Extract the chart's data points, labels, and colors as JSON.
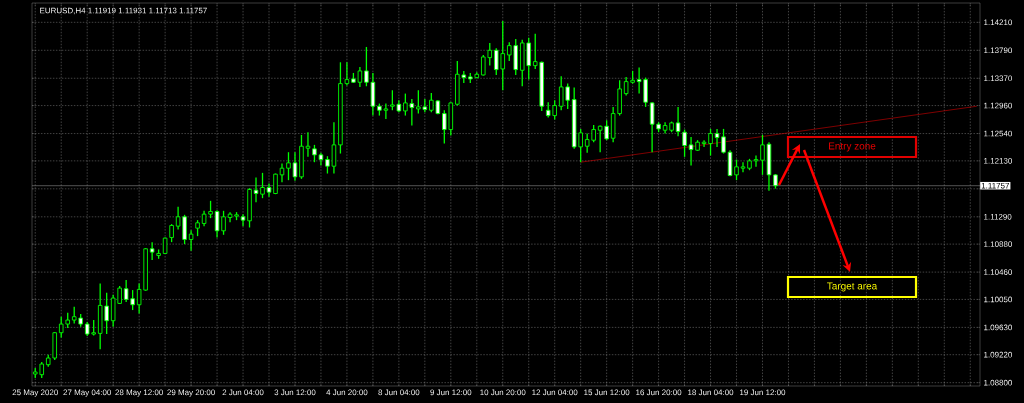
{
  "chart_data": {
    "type": "candlestick",
    "title": "EURUSD,H4 1.11919 1.11931 1.11713 1.11757",
    "color": "#00ff00",
    "categories": [
      "25 May 2020",
      null,
      null,
      null,
      null,
      null,
      null,
      null,
      "27 May 04:00",
      null,
      null,
      null,
      null,
      null,
      null,
      null,
      "28 May 12:00",
      null,
      null,
      null,
      null,
      null,
      null,
      null,
      "29 May 20:00",
      null,
      null,
      null,
      null,
      null,
      null,
      null,
      "2 Jun 04:00",
      null,
      null,
      null,
      null,
      null,
      null,
      null,
      "3 Jun 12:00",
      null,
      null,
      null,
      null,
      null,
      null,
      null,
      "4 Jun 20:00",
      null,
      null,
      null,
      null,
      null,
      null,
      null,
      "8 Jun 04:00",
      null,
      null,
      null,
      null,
      null,
      null,
      null,
      "9 Jun 12:00",
      null,
      null,
      null,
      null,
      null,
      null,
      null,
      "10 Jun 20:00",
      null,
      null,
      null,
      null,
      null,
      null,
      null,
      "12 Jun 04:00",
      null,
      null,
      null,
      null,
      null,
      null,
      null,
      "15 Jun 12:00",
      null,
      null,
      null,
      null,
      null,
      null,
      null,
      "16 Jun 20:00",
      null,
      null,
      null,
      null,
      null,
      null,
      null,
      "18 Jun 04:00",
      null,
      null,
      null,
      null,
      null,
      null,
      null,
      "19 Jun 12:00",
      null,
      null,
      null,
      null,
      null,
      null,
      null,
      null,
      null,
      null,
      null,
      null,
      null,
      null,
      null,
      null,
      null,
      null,
      null,
      null,
      null,
      null,
      null,
      null,
      null,
      null,
      null,
      null,
      null,
      null,
      null,
      null,
      null
    ],
    "ohlc": [
      [
        1.0893,
        1.0902,
        1.0887,
        1.0896
      ],
      [
        1.0892,
        1.0911,
        1.0887,
        1.0908
      ],
      [
        1.0907,
        1.0922,
        1.0904,
        1.0917
      ],
      [
        1.0917,
        1.0956,
        1.0914,
        1.0955
      ],
      [
        1.0955,
        1.0979,
        1.0948,
        1.0968
      ],
      [
        1.0968,
        1.0985,
        1.0962,
        1.0974
      ],
      [
        1.0974,
        1.0994,
        1.0969,
        1.0979
      ],
      [
        1.0977,
        1.0983,
        1.0964,
        1.0968
      ],
      [
        1.0968,
        1.0971,
        1.095,
        1.0953
      ],
      [
        1.0953,
        1.0974,
        1.0951,
        1.0955
      ],
      [
        1.0954,
        1.1029,
        1.093,
        1.0996
      ],
      [
        1.0995,
        1.1015,
        1.0953,
        1.0973
      ],
      [
        1.0973,
        1.1012,
        1.0964,
        1.1007
      ],
      [
        1.0999,
        1.1025,
        1.0998,
        1.1022
      ],
      [
        1.1021,
        1.1034,
        1.1001,
        1.1005
      ],
      [
        1.1006,
        1.1019,
        1.0989,
        1.0997
      ],
      [
        1.0997,
        1.1029,
        1.0984,
        1.102
      ],
      [
        1.1019,
        1.1082,
        1.1018,
        1.1081
      ],
      [
        1.1081,
        1.1091,
        1.1064,
        1.1076
      ],
      [
        1.1071,
        1.108,
        1.1066,
        1.1074
      ],
      [
        1.1074,
        1.1098,
        1.1073,
        1.1097
      ],
      [
        1.1098,
        1.1118,
        1.1091,
        1.1116
      ],
      [
        1.1115,
        1.1144,
        1.111,
        1.1129
      ],
      [
        1.1129,
        1.1132,
        1.1088,
        1.1095
      ],
      [
        1.1095,
        1.1109,
        1.1078,
        1.1103
      ],
      [
        1.1112,
        1.1124,
        1.11,
        1.112
      ],
      [
        1.1119,
        1.1138,
        1.1115,
        1.1133
      ],
      [
        1.1133,
        1.1153,
        1.1127,
        1.1137
      ],
      [
        1.1137,
        1.1139,
        1.1098,
        1.1108
      ],
      [
        1.1108,
        1.1138,
        1.1102,
        1.1129
      ],
      [
        1.1128,
        1.1136,
        1.1121,
        1.1133
      ],
      [
        1.113,
        1.1136,
        1.1124,
        1.1132
      ],
      [
        1.1129,
        1.1133,
        1.1115,
        1.1124
      ],
      [
        1.1123,
        1.1172,
        1.1113,
        1.117
      ],
      [
        1.1169,
        1.1188,
        1.1151,
        1.1164
      ],
      [
        1.1163,
        1.1195,
        1.1157,
        1.1173
      ],
      [
        1.1173,
        1.1179,
        1.1159,
        1.1166
      ],
      [
        1.1164,
        1.1194,
        1.1163,
        1.1193
      ],
      [
        1.1192,
        1.1209,
        1.1181,
        1.1202
      ],
      [
        1.1202,
        1.1226,
        1.1184,
        1.121
      ],
      [
        1.121,
        1.1226,
        1.1183,
        1.1189
      ],
      [
        1.1189,
        1.1252,
        1.1186,
        1.1235
      ],
      [
        1.1232,
        1.1256,
        1.1219,
        1.1235
      ],
      [
        1.1231,
        1.1237,
        1.1211,
        1.1222
      ],
      [
        1.1222,
        1.1225,
        1.1206,
        1.1215
      ],
      [
        1.1215,
        1.122,
        1.1194,
        1.1205
      ],
      [
        1.1205,
        1.1271,
        1.1194,
        1.1237
      ],
      [
        1.1237,
        1.1361,
        1.1224,
        1.1329
      ],
      [
        1.1329,
        1.1361,
        1.1326,
        1.1335
      ],
      [
        1.1336,
        1.1345,
        1.133,
        1.1331
      ],
      [
        1.1331,
        1.1354,
        1.1324,
        1.1348
      ],
      [
        1.1348,
        1.1384,
        1.1325,
        1.1331
      ],
      [
        1.1331,
        1.1345,
        1.1281,
        1.1295
      ],
      [
        1.1295,
        1.1299,
        1.1281,
        1.1289
      ],
      [
        1.1289,
        1.1299,
        1.1276,
        1.1291
      ],
      [
        1.1295,
        1.1319,
        1.1289,
        1.1297
      ],
      [
        1.1298,
        1.1304,
        1.1286,
        1.1288
      ],
      [
        1.1288,
        1.1314,
        1.1281,
        1.13
      ],
      [
        1.1299,
        1.1306,
        1.1266,
        1.1293
      ],
      [
        1.1291,
        1.1319,
        1.1284,
        1.1294
      ],
      [
        1.1294,
        1.1306,
        1.1286,
        1.129
      ],
      [
        1.1289,
        1.1315,
        1.1286,
        1.1304
      ],
      [
        1.1303,
        1.1304,
        1.1283,
        1.1284
      ],
      [
        1.1284,
        1.1289,
        1.1239,
        1.126
      ],
      [
        1.126,
        1.1301,
        1.1251,
        1.13
      ],
      [
        1.1298,
        1.1363,
        1.1296,
        1.1343
      ],
      [
        1.1342,
        1.1348,
        1.133,
        1.1338
      ],
      [
        1.1339,
        1.1345,
        1.133,
        1.1336
      ],
      [
        1.1338,
        1.1346,
        1.1337,
        1.1343
      ],
      [
        1.1342,
        1.1372,
        1.1341,
        1.1369
      ],
      [
        1.1368,
        1.139,
        1.1356,
        1.1379
      ],
      [
        1.1379,
        1.1382,
        1.1342,
        1.135
      ],
      [
        1.1351,
        1.1423,
        1.1319,
        1.1374
      ],
      [
        1.1372,
        1.1391,
        1.1363,
        1.1386
      ],
      [
        1.1386,
        1.1396,
        1.1342,
        1.135
      ],
      [
        1.1349,
        1.1395,
        1.1325,
        1.139
      ],
      [
        1.139,
        1.1398,
        1.1335,
        1.1356
      ],
      [
        1.1356,
        1.1404,
        1.1351,
        1.1362
      ],
      [
        1.1361,
        1.1362,
        1.1288,
        1.1295
      ],
      [
        1.1289,
        1.1301,
        1.1278,
        1.1281
      ],
      [
        1.1281,
        1.1304,
        1.1275,
        1.1296
      ],
      [
        1.1295,
        1.134,
        1.1289,
        1.1324
      ],
      [
        1.1324,
        1.1329,
        1.1291,
        1.1304
      ],
      [
        1.1305,
        1.1323,
        1.1231,
        1.1234
      ],
      [
        1.1234,
        1.1261,
        1.1211,
        1.1255
      ],
      [
        1.1235,
        1.1254,
        1.1225,
        1.1245
      ],
      [
        1.1244,
        1.1267,
        1.1241,
        1.126
      ],
      [
        1.1259,
        1.1266,
        1.1226,
        1.1265
      ],
      [
        1.1265,
        1.1274,
        1.1244,
        1.1246
      ],
      [
        1.1247,
        1.1294,
        1.1241,
        1.1284
      ],
      [
        1.1284,
        1.1334,
        1.1281,
        1.1321
      ],
      [
        1.1314,
        1.1339,
        1.1311,
        1.1332
      ],
      [
        1.1331,
        1.1348,
        1.1329,
        1.1334
      ],
      [
        1.1335,
        1.1353,
        1.1314,
        1.1332
      ],
      [
        1.1335,
        1.1338,
        1.1294,
        1.1301
      ],
      [
        1.13,
        1.1301,
        1.1226,
        1.1268
      ],
      [
        1.1268,
        1.1271,
        1.1256,
        1.1261
      ],
      [
        1.1259,
        1.1271,
        1.1254,
        1.1266
      ],
      [
        1.1259,
        1.1272,
        1.1256,
        1.127
      ],
      [
        1.127,
        1.1294,
        1.125,
        1.1257
      ],
      [
        1.1256,
        1.126,
        1.1219,
        1.1236
      ],
      [
        1.1237,
        1.1249,
        1.1206,
        1.123
      ],
      [
        1.1229,
        1.1244,
        1.1228,
        1.1241
      ],
      [
        1.1239,
        1.1244,
        1.1234,
        1.1241
      ],
      [
        1.1239,
        1.1261,
        1.1221,
        1.1254
      ],
      [
        1.1254,
        1.1261,
        1.1234,
        1.1248
      ],
      [
        1.1249,
        1.1261,
        1.1224,
        1.1226
      ],
      [
        1.1226,
        1.1229,
        1.119,
        1.1191
      ],
      [
        1.1192,
        1.1215,
        1.1184,
        1.1204
      ],
      [
        1.1202,
        1.1211,
        1.1196,
        1.1204
      ],
      [
        1.1202,
        1.1216,
        1.1199,
        1.1213
      ],
      [
        1.1213,
        1.1221,
        1.1204,
        1.1215
      ],
      [
        1.1214,
        1.1252,
        1.1192,
        1.1237
      ],
      [
        1.1238,
        1.1241,
        1.1168,
        1.1192
      ],
      [
        1.11919,
        1.11931,
        1.11713,
        1.11757
      ],
      null,
      null,
      null,
      null,
      null,
      null,
      null,
      null,
      null,
      null,
      null,
      null,
      null,
      null,
      null,
      null,
      null,
      null,
      null,
      null,
      null,
      null,
      null,
      null,
      null,
      null,
      null,
      null,
      null,
      null,
      null
    ],
    "series": [
      {
        "type": "line",
        "color": "#d40000",
        "values": [
          null,
          null,
          null,
          null,
          null,
          null,
          null,
          null,
          null,
          null,
          null,
          null,
          null,
          null,
          null,
          null,
          null,
          null,
          null,
          null,
          null,
          null,
          null,
          null,
          null,
          null,
          null,
          null,
          null,
          null,
          null,
          null,
          null,
          null,
          null,
          null,
          null,
          null,
          null,
          null,
          null,
          null,
          null,
          null,
          null,
          null,
          null,
          null,
          null,
          null,
          null,
          null,
          null,
          null,
          null,
          null,
          null,
          null,
          null,
          null,
          null,
          null,
          null,
          null,
          null,
          null,
          null,
          null,
          null,
          null,
          null,
          null,
          null,
          null,
          null,
          null,
          null,
          null,
          null,
          null,
          null,
          null,
          null,
          null,
          1.1211,
          null,
          null,
          null,
          null,
          null,
          null,
          null,
          null,
          null,
          null,
          null,
          null,
          null,
          null,
          null,
          null,
          null,
          null,
          null,
          null,
          null,
          null,
          null,
          null,
          null,
          null,
          null,
          null,
          null,
          null,
          null,
          null,
          null,
          null,
          null,
          null,
          null,
          null,
          null,
          null,
          null,
          null,
          null,
          null,
          null,
          null,
          null,
          null,
          null,
          null,
          null,
          null,
          null,
          null,
          null,
          null,
          null,
          null,
          null,
          null,
          1.1295
        ]
      }
    ],
    "ylim": [
      1.0875,
      1.145
    ],
    "yticks": [
      {
        "value": 1.1421,
        "label": "1.14210"
      },
      {
        "value": 1.1379,
        "label": "1.13790"
      },
      {
        "value": 1.1337,
        "label": "1.13370"
      },
      {
        "value": 1.1296,
        "label": "1.12960"
      },
      {
        "value": 1.1254,
        "label": "1.12540"
      },
      {
        "value": 1.1213,
        "label": "1.12130"
      },
      {
        "value": 1.1171,
        "label": null
      },
      {
        "value": 1.1129,
        "label": "1.11290"
      },
      {
        "value": 1.1088,
        "label": "1.10880"
      },
      {
        "value": 1.1046,
        "label": "1.10460"
      },
      {
        "value": 1.1005,
        "label": "1.10050"
      },
      {
        "value": 1.0963,
        "label": "1.09630"
      },
      {
        "value": 1.0922,
        "label": "1.09220"
      },
      {
        "value": 1.088,
        "label": "1.08800"
      }
    ],
    "ref_lines": [
      {
        "axis": "y",
        "value": 1.11757,
        "label": "1.11757",
        "color": "#8c8c8c"
      }
    ],
    "annotations": [
      "Entry zone",
      "Target area"
    ],
    "grid": true
  }
}
